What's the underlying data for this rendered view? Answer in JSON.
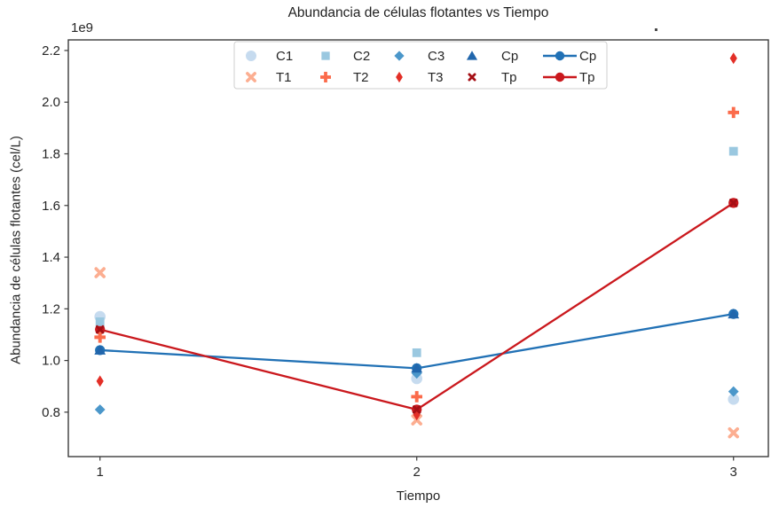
{
  "chart_data": {
    "type": "scatter",
    "title": "Abundancia de células flotantes vs Tiempo",
    "xlabel": "Tiempo",
    "ylabel": "Abundancia de células flotantes (cel/L)",
    "y_axis_offset_text": "1e9",
    "values_unit": "x1e9 cel/L",
    "x": [
      1,
      2,
      3
    ],
    "x_tick_labels": [
      "1",
      "2",
      "3"
    ],
    "y_ticks": [
      0.8,
      1.0,
      1.2,
      1.4,
      1.6,
      1.8,
      2.0,
      2.2
    ],
    "y_tick_labels": [
      "0.8",
      "1.0",
      "1.2",
      "1.4",
      "1.6",
      "1.8",
      "2.0",
      "2.2"
    ],
    "xlim": [
      0.9,
      3.11
    ],
    "ylim": [
      0.628,
      2.241
    ],
    "grid": false,
    "legend_position": "upper center, 2 rows x 5 columns",
    "scatter_series": [
      {
        "name": "C1",
        "marker": "circle",
        "color": "#c6dbef",
        "values": [
          1.17,
          0.93,
          0.85
        ]
      },
      {
        "name": "C2",
        "marker": "square",
        "color": "#9ac8e0",
        "values": [
          1.15,
          1.03,
          1.81
        ]
      },
      {
        "name": "C3",
        "marker": "diamond",
        "color": "#4b97ca",
        "values": [
          0.81,
          0.95,
          0.88
        ]
      },
      {
        "name": "Cp",
        "marker": "triangle",
        "color": "#2166ac",
        "values": [
          1.04,
          0.97,
          1.18
        ]
      },
      {
        "name": "T1",
        "marker": "x-thick",
        "color": "#fcae91",
        "values": [
          1.34,
          0.77,
          0.72
        ]
      },
      {
        "name": "T2",
        "marker": "plus-thick",
        "color": "#fb6b4b",
        "values": [
          1.09,
          0.86,
          1.96
        ]
      },
      {
        "name": "T3",
        "marker": "thin-diamond",
        "color": "#e32f27",
        "values": [
          0.92,
          0.79,
          2.17
        ]
      },
      {
        "name": "Tp",
        "marker": "x-small",
        "color": "#a50f15",
        "values": [
          1.12,
          0.81,
          1.61
        ]
      }
    ],
    "line_series": [
      {
        "name": "Cp",
        "marker": "circle",
        "color": "#2171b5",
        "values": [
          1.04,
          0.97,
          1.18
        ]
      },
      {
        "name": "Tp",
        "marker": "circle",
        "color": "#ca181d",
        "values": [
          1.12,
          0.81,
          1.61
        ]
      }
    ],
    "colors": {
      "spine": "#3b3b3b",
      "text": "#262626",
      "legend_border": "#cfcfcf"
    }
  }
}
